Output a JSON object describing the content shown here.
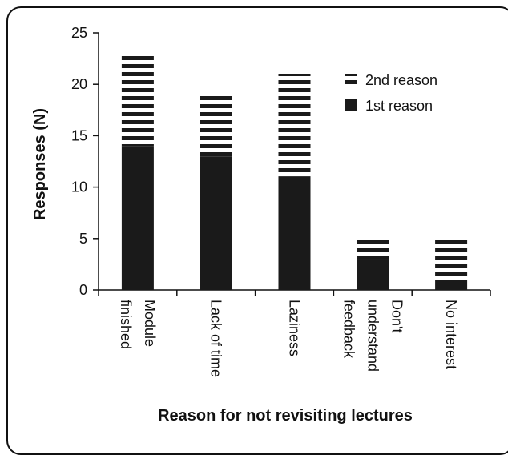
{
  "chart_data": {
    "type": "bar",
    "stacked": true,
    "categories": [
      "Module finished",
      "Lack of time",
      "Laziness",
      "Don't understand feedback",
      "No interest"
    ],
    "category_lines": [
      [
        "finished",
        "Module"
      ],
      [
        "Lack of time"
      ],
      [
        "Laziness"
      ],
      [
        "feedback",
        "understand",
        "Don't"
      ],
      [
        "No interest"
      ]
    ],
    "series": [
      {
        "name": "1st reason",
        "values": [
          14,
          13,
          11,
          3,
          1
        ]
      },
      {
        "name": "2nd reason",
        "values": [
          9,
          6,
          10,
          2,
          4
        ]
      }
    ],
    "xlabel": "Reason for not revisiting lectures",
    "ylabel": "Responses (N)",
    "ylim": [
      0,
      25
    ],
    "yticks": [
      "0",
      "5",
      "10",
      "15",
      "20",
      "25"
    ],
    "legend": {
      "placement": "top-right",
      "order": [
        "2nd reason",
        "1st reason"
      ]
    },
    "grid": false,
    "colors": {
      "first": "#1a1a1a",
      "second_stripe": "#1a1a1a",
      "background": "#ffffff"
    }
  }
}
